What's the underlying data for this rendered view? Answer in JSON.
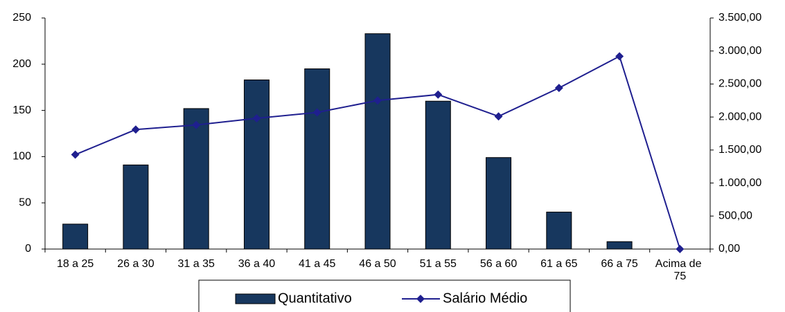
{
  "chart_data": {
    "type": "bar",
    "categories": [
      "18 a 25",
      "26 a 30",
      "31 a 35",
      "36 a 40",
      "41 a 45",
      "46 a 50",
      "51 a 55",
      "56 a 60",
      "61 a 65",
      "66 a 75",
      "Acima de 75"
    ],
    "series": [
      {
        "name": "Quantitativo",
        "type": "bar",
        "color": "#17375e",
        "values": [
          27,
          91,
          152,
          183,
          195,
          233,
          160,
          99,
          40,
          8,
          0
        ]
      },
      {
        "name": "Salário Médio",
        "type": "line",
        "axis": "y2",
        "color": "#1f1f8f",
        "values": [
          1430,
          1810,
          1880,
          1980,
          2070,
          2250,
          2340,
          2010,
          2440,
          2920,
          0
        ]
      }
    ],
    "ylim": [
      0,
      250
    ],
    "yticks": [
      0,
      50,
      100,
      150,
      200,
      250
    ],
    "y2lim": [
      0,
      3500
    ],
    "y2ticks": [
      {
        "value": 0,
        "label": "0,00"
      },
      {
        "value": 500,
        "label": "500,00"
      },
      {
        "value": 1000,
        "label": "1.000,00"
      },
      {
        "value": 1500,
        "label": "1.500,00"
      },
      {
        "value": 2000,
        "label": "2.000,00"
      },
      {
        "value": 2500,
        "label": "2.500,00"
      },
      {
        "value": 3000,
        "label": "3.000,00"
      },
      {
        "value": 3500,
        "label": "3.500,00"
      }
    ],
    "grid": false,
    "legend": "bottom"
  }
}
